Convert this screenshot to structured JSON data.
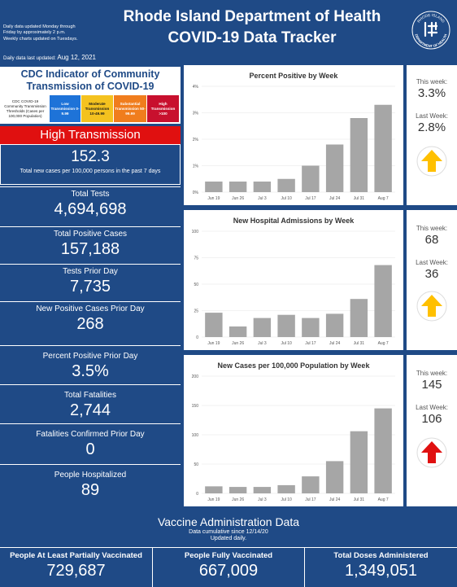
{
  "header": {
    "info_lines": [
      "Daily data updated Monday through",
      "Friday by approximately 2 p.m.",
      "Weekly charts updated on Tuesdays."
    ],
    "updated_label": "Daily data last updated: ",
    "updated_date": "Aug 12, 2021",
    "title_line1": "Rhode Island Department of Health",
    "title_line2": "COVID-19 Data Tracker",
    "logo_text_top": "RHODE ISLAND",
    "logo_text_bottom": "DEPARTMENT OF HEALTH"
  },
  "cdc": {
    "title_line1": "CDC Indicator of Community",
    "title_line2": "Transmission of COVID-19",
    "label": "CDC COVID-19 Community Transmission Thresholds (Cases per 100,000 Population)",
    "low": "Low Transmission 0-9.99",
    "moderate": "Moderate Transmission 10-49.99",
    "substantial": "Substantial Transmission 50-99.99",
    "high": "High Transmission >100",
    "colors": {
      "low": "#1e73d8",
      "moderate": "#f4c21f",
      "substantial": "#f07d1d",
      "high": "#c8102e"
    }
  },
  "transmission": {
    "level": "High Transmission",
    "rate": "152.3",
    "rate_label": "Total new cases per 100,000 persons in the past 7 days"
  },
  "stats": [
    {
      "label": "Total Tests",
      "value": "4,694,698"
    },
    {
      "label": "Total Positive Cases",
      "value": "157,188"
    },
    {
      "label": "Tests Prior Day",
      "value": "7,735"
    },
    {
      "label": "New Positive Cases Prior Day",
      "value": "268"
    },
    {
      "label": "Percent Positive Prior Day",
      "value": "3.5%"
    },
    {
      "label": "Total Fatalities",
      "value": "2,744"
    },
    {
      "label": "Fatalities Confirmed Prior Day",
      "value": "0"
    },
    {
      "label": "People Hospitalized",
      "value": "89"
    }
  ],
  "chart_data": [
    {
      "type": "bar",
      "title": "Percent Positive by Week",
      "categories": [
        "Jun 19",
        "Jun 26",
        "Jul 3",
        "Jul 10",
        "Jul 17",
        "Jul 24",
        "Jul 31",
        "Aug 7"
      ],
      "values": [
        0.4,
        0.4,
        0.4,
        0.5,
        1.0,
        1.8,
        2.8,
        3.3
      ],
      "ylim": [
        0,
        4
      ],
      "yticks": [
        0,
        1,
        2,
        3,
        4
      ],
      "ytick_labels": [
        "0%",
        "1%",
        "2%",
        "3%",
        "4%"
      ],
      "xlabel": "",
      "ylabel": "",
      "color": "#a6a6a6"
    },
    {
      "type": "bar",
      "title": "New Hospital Admissions by Week",
      "categories": [
        "Jun 19",
        "Jun 26",
        "Jul 3",
        "Jul 10",
        "Jul 17",
        "Jul 24",
        "Jul 31",
        "Aug 7"
      ],
      "values": [
        23,
        10,
        18,
        21,
        18,
        22,
        36,
        68
      ],
      "ylim": [
        0,
        100
      ],
      "yticks": [
        0,
        25,
        50,
        75,
        100
      ],
      "ytick_labels": [
        "0",
        "25",
        "50",
        "75",
        "100"
      ],
      "xlabel": "",
      "ylabel": "",
      "color": "#a6a6a6"
    },
    {
      "type": "bar",
      "title": "New Cases per 100,000 Population by Week",
      "categories": [
        "Jun 19",
        "Jun 26",
        "Jul 3",
        "Jul 10",
        "Jul 17",
        "Jul 24",
        "Jul 31",
        "Aug 7"
      ],
      "values": [
        12,
        11,
        11,
        14,
        29,
        55,
        106,
        145
      ],
      "ylim": [
        0,
        200
      ],
      "yticks": [
        0,
        50,
        100,
        150,
        200
      ],
      "ytick_labels": [
        "0",
        "50",
        "100",
        "150",
        "200"
      ],
      "xlabel": "",
      "ylabel": "",
      "color": "#a6a6a6"
    }
  ],
  "weekly": [
    {
      "this_label": "This week:",
      "this_value": "3.3%",
      "last_label": "Last Week:",
      "last_value": "2.8%",
      "arrow": "up-arrow-icon",
      "arrow_color": "#ffc000"
    },
    {
      "this_label": "This week:",
      "this_value": "68",
      "last_label": "Last Week:",
      "last_value": "36",
      "arrow": "up-arrow-icon",
      "arrow_color": "#ffc000"
    },
    {
      "this_label": "This week:",
      "this_value": "145",
      "last_label": "Last Week:",
      "last_value": "106",
      "arrow": "up-arrow-icon",
      "arrow_color": "#e01010"
    }
  ],
  "vaccine": {
    "title": "Vaccine Administration Data",
    "subtitle_line1": "Data cumulative since 12/14/20",
    "subtitle_line2": "Updated daily.",
    "items": [
      {
        "label": "People At Least Partially Vaccinated",
        "value": "729,687"
      },
      {
        "label": "People Fully Vaccinated",
        "value": "667,009"
      },
      {
        "label": "Total Doses Administered",
        "value": "1,349,051"
      }
    ]
  }
}
